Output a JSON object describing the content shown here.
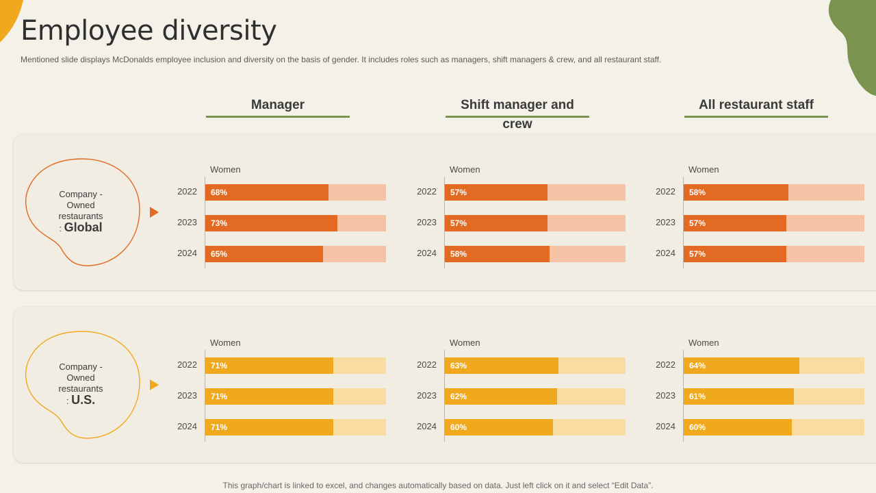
{
  "title": "Employee diversity",
  "subtitle": "Mentioned slide displays McDonalds employee inclusion and diversity on the basis of gender. It includes roles such as managers, shift managers & crew, and all restaurant staff.",
  "columns": [
    "Manager",
    "Shift manager and crew",
    "All restaurant staff"
  ],
  "rows": [
    {
      "line1": "Company -",
      "line2": "Owned",
      "line3": "restaurants",
      "prefix": ": ",
      "region": "Global",
      "color": "#e26a22",
      "track_color": "#f5c2a5"
    },
    {
      "line1": "Company -",
      "line2": "Owned",
      "line3": "restaurants",
      "prefix": ": ",
      "region": "U.S.",
      "color": "#f0a81c",
      "track_color": "#f8dca2"
    }
  ],
  "footnote": "This graph/chart is linked to excel, and changes automatically based on data. Just left click on it and select “Edit Data”.",
  "chart_data": [
    {
      "type": "bar",
      "orientation": "horizontal",
      "row": "Global",
      "column": "Manager",
      "series_label": "Women",
      "categories": [
        "2022",
        "2023",
        "2024"
      ],
      "values": [
        68,
        73,
        65
      ],
      "xlim": [
        0,
        100
      ]
    },
    {
      "type": "bar",
      "orientation": "horizontal",
      "row": "Global",
      "column": "Shift manager and crew",
      "series_label": "Women",
      "categories": [
        "2022",
        "2023",
        "2024"
      ],
      "values": [
        57,
        57,
        58
      ],
      "xlim": [
        0,
        100
      ]
    },
    {
      "type": "bar",
      "orientation": "horizontal",
      "row": "Global",
      "column": "All restaurant staff",
      "series_label": "Women",
      "categories": [
        "2022",
        "2023",
        "2024"
      ],
      "values": [
        58,
        57,
        57
      ],
      "xlim": [
        0,
        100
      ]
    },
    {
      "type": "bar",
      "orientation": "horizontal",
      "row": "U.S.",
      "column": "Manager",
      "series_label": "Women",
      "categories": [
        "2022",
        "2023",
        "2024"
      ],
      "values": [
        71,
        71,
        71
      ],
      "xlim": [
        0,
        100
      ]
    },
    {
      "type": "bar",
      "orientation": "horizontal",
      "row": "U.S.",
      "column": "Shift manager and crew",
      "series_label": "Women",
      "categories": [
        "2022",
        "2023",
        "2024"
      ],
      "values": [
        63,
        62,
        60
      ],
      "xlim": [
        0,
        100
      ]
    },
    {
      "type": "bar",
      "orientation": "horizontal",
      "row": "U.S.",
      "column": "All restaurant staff",
      "series_label": "Women",
      "categories": [
        "2022",
        "2023",
        "2024"
      ],
      "values": [
        64,
        61,
        60
      ],
      "xlim": [
        0,
        100
      ]
    }
  ]
}
